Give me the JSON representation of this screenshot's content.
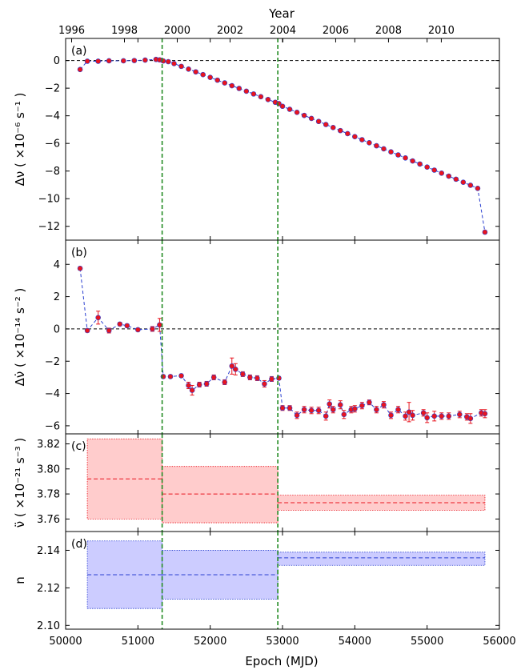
{
  "figure": {
    "top_label": "Year",
    "x_label": "Epoch (MJD)",
    "year_ticks": [
      1996,
      1998,
      2000,
      2002,
      2004,
      2006,
      2008,
      2010
    ],
    "x_ticks": [
      50000,
      51000,
      52000,
      53000,
      54000,
      55000,
      56000
    ],
    "xlim": [
      50000,
      56000
    ],
    "glitch_epochs": [
      51335,
      52935
    ],
    "colors": {
      "points": "#e8141e",
      "line": "#2a3fd0",
      "glitch": "#228b22",
      "red_band": "#ffcccc",
      "blue_band": "#ccccff"
    }
  },
  "chart_data": [
    {
      "type": "scatter",
      "panel": "a",
      "panel_label": "(a)",
      "ylabel": "Δν ( ×10⁻⁶ s⁻¹ )",
      "ylim": [
        -13.0,
        1.6
      ],
      "yticks": [
        0,
        -2,
        -4,
        -6,
        -8,
        -10,
        -12
      ],
      "x": [
        50200,
        50300,
        50450,
        50600,
        50800,
        50950,
        51100,
        51250,
        51300,
        51350,
        51420,
        51500,
        51600,
        51700,
        51800,
        51900,
        52000,
        52100,
        52200,
        52300,
        52400,
        52500,
        52600,
        52700,
        52800,
        52900,
        52950,
        53000,
        53100,
        53200,
        53300,
        53400,
        53500,
        53600,
        53700,
        53800,
        53900,
        54000,
        54100,
        54200,
        54300,
        54400,
        54500,
        54600,
        54700,
        54800,
        54900,
        55000,
        55100,
        55200,
        55300,
        55400,
        55500,
        55600,
        55700,
        55800
      ],
      "y": [
        -0.65,
        -0.05,
        -0.05,
        -0.02,
        -0.02,
        0.0,
        0.03,
        0.08,
        0.05,
        -0.03,
        -0.08,
        -0.22,
        -0.42,
        -0.62,
        -0.82,
        -1.02,
        -1.22,
        -1.42,
        -1.62,
        -1.82,
        -2.02,
        -2.22,
        -2.42,
        -2.62,
        -2.82,
        -3.02,
        -3.12,
        -3.31,
        -3.53,
        -3.75,
        -3.97,
        -4.19,
        -4.41,
        -4.63,
        -4.85,
        -5.07,
        -5.29,
        -5.51,
        -5.73,
        -5.95,
        -6.17,
        -6.39,
        -6.61,
        -6.83,
        -7.05,
        -7.27,
        -7.49,
        -7.71,
        -7.93,
        -8.15,
        -8.37,
        -8.59,
        -8.81,
        -9.03,
        -9.25,
        -12.42
      ]
    },
    {
      "type": "scatter",
      "panel": "b",
      "panel_label": "(b)",
      "ylabel": "Δν̇ ( ×10⁻¹⁴ s⁻² )",
      "ylim": [
        -6.5,
        5.5
      ],
      "yticks": [
        4,
        2,
        0,
        -2,
        -4,
        -6
      ],
      "x": [
        50200,
        50300,
        50450,
        50600,
        50750,
        50850,
        51000,
        51200,
        51300,
        51350,
        51450,
        51600,
        51700,
        51750,
        51850,
        51950,
        52050,
        52200,
        52300,
        52350,
        52450,
        52550,
        52650,
        52750,
        52850,
        52950,
        53000,
        53100,
        53200,
        53300,
        53400,
        53500,
        53600,
        53650,
        53700,
        53800,
        53850,
        53950,
        54000,
        54100,
        54200,
        54300,
        54400,
        54500,
        54600,
        54700,
        54750,
        54800,
        54950,
        55000,
        55100,
        55200,
        55300,
        55450,
        55550,
        55600,
        55750,
        55800
      ],
      "y": [
        3.75,
        -0.1,
        0.7,
        -0.1,
        0.3,
        0.2,
        -0.05,
        0.0,
        0.25,
        -2.95,
        -2.95,
        -2.9,
        -3.5,
        -3.8,
        -3.45,
        -3.4,
        -3.0,
        -3.3,
        -2.3,
        -2.5,
        -2.8,
        -3.0,
        -3.05,
        -3.4,
        -3.1,
        -3.05,
        -4.9,
        -4.9,
        -5.35,
        -5.0,
        -5.05,
        -5.05,
        -5.4,
        -4.65,
        -5.0,
        -4.7,
        -5.3,
        -5.0,
        -4.95,
        -4.75,
        -4.55,
        -5.0,
        -4.7,
        -5.35,
        -5.0,
        -5.4,
        -5.15,
        -5.35,
        -5.2,
        -5.5,
        -5.4,
        -5.4,
        -5.4,
        -5.3,
        -5.45,
        -5.55,
        -5.2,
        -5.25
      ],
      "err": [
        0.1,
        0.1,
        0.4,
        0.15,
        0.1,
        0.1,
        0.1,
        0.15,
        0.4,
        0.1,
        0.1,
        0.1,
        0.2,
        0.3,
        0.15,
        0.15,
        0.15,
        0.15,
        0.5,
        0.35,
        0.15,
        0.15,
        0.15,
        0.2,
        0.15,
        0.1,
        0.15,
        0.15,
        0.2,
        0.2,
        0.2,
        0.2,
        0.25,
        0.25,
        0.2,
        0.25,
        0.25,
        0.2,
        0.2,
        0.2,
        0.15,
        0.2,
        0.2,
        0.2,
        0.2,
        0.25,
        0.6,
        0.3,
        0.2,
        0.3,
        0.3,
        0.2,
        0.2,
        0.2,
        0.2,
        0.3,
        0.2,
        0.25
      ]
    },
    {
      "type": "area",
      "panel": "c",
      "panel_label": "(c)",
      "ylabel": "ν̈ ( ×10⁻²¹ s⁻³ )",
      "ylim": [
        3.75,
        3.828
      ],
      "yticks": [
        3.76,
        3.78,
        3.8,
        3.82
      ],
      "segments": [
        {
          "x": [
            50300,
            51335
          ],
          "value": 3.792,
          "low": 3.76,
          "high": 3.824
        },
        {
          "x": [
            51335,
            52935
          ],
          "value": 3.78,
          "low": 3.757,
          "high": 3.802
        },
        {
          "x": [
            52935,
            55800
          ],
          "value": 3.773,
          "low": 3.767,
          "high": 3.779
        }
      ]
    },
    {
      "type": "area",
      "panel": "d",
      "panel_label": "(d)",
      "ylabel": "n",
      "ylim": [
        2.098,
        2.15
      ],
      "yticks": [
        2.1,
        2.12,
        2.14
      ],
      "segments": [
        {
          "x": [
            50300,
            51335
          ],
          "value": 2.127,
          "low": 2.109,
          "high": 2.145
        },
        {
          "x": [
            51335,
            52935
          ],
          "value": 2.127,
          "low": 2.114,
          "high": 2.14
        },
        {
          "x": [
            52935,
            55800
          ],
          "value": 2.136,
          "low": 2.132,
          "high": 2.139
        }
      ]
    }
  ]
}
